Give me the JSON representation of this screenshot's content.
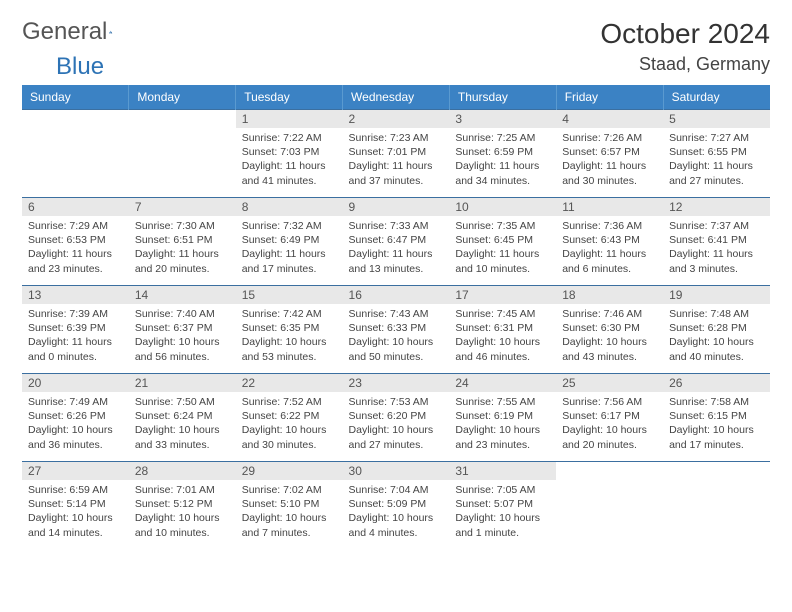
{
  "brand": {
    "part1": "General",
    "part2": "Blue"
  },
  "colors": {
    "header_bg": "#3b82c4",
    "header_text": "#ffffff",
    "daynum_bg": "#e8e8e8",
    "border": "#3b6fa0",
    "brand_blue": "#2d73b5"
  },
  "title": "October 2024",
  "location": "Staad, Germany",
  "weekdays": [
    "Sunday",
    "Monday",
    "Tuesday",
    "Wednesday",
    "Thursday",
    "Friday",
    "Saturday"
  ],
  "weeks": [
    [
      null,
      null,
      {
        "n": "1",
        "sr": "7:22 AM",
        "ss": "7:03 PM",
        "dl": "11 hours and 41 minutes."
      },
      {
        "n": "2",
        "sr": "7:23 AM",
        "ss": "7:01 PM",
        "dl": "11 hours and 37 minutes."
      },
      {
        "n": "3",
        "sr": "7:25 AM",
        "ss": "6:59 PM",
        "dl": "11 hours and 34 minutes."
      },
      {
        "n": "4",
        "sr": "7:26 AM",
        "ss": "6:57 PM",
        "dl": "11 hours and 30 minutes."
      },
      {
        "n": "5",
        "sr": "7:27 AM",
        "ss": "6:55 PM",
        "dl": "11 hours and 27 minutes."
      }
    ],
    [
      {
        "n": "6",
        "sr": "7:29 AM",
        "ss": "6:53 PM",
        "dl": "11 hours and 23 minutes."
      },
      {
        "n": "7",
        "sr": "7:30 AM",
        "ss": "6:51 PM",
        "dl": "11 hours and 20 minutes."
      },
      {
        "n": "8",
        "sr": "7:32 AM",
        "ss": "6:49 PM",
        "dl": "11 hours and 17 minutes."
      },
      {
        "n": "9",
        "sr": "7:33 AM",
        "ss": "6:47 PM",
        "dl": "11 hours and 13 minutes."
      },
      {
        "n": "10",
        "sr": "7:35 AM",
        "ss": "6:45 PM",
        "dl": "11 hours and 10 minutes."
      },
      {
        "n": "11",
        "sr": "7:36 AM",
        "ss": "6:43 PM",
        "dl": "11 hours and 6 minutes."
      },
      {
        "n": "12",
        "sr": "7:37 AM",
        "ss": "6:41 PM",
        "dl": "11 hours and 3 minutes."
      }
    ],
    [
      {
        "n": "13",
        "sr": "7:39 AM",
        "ss": "6:39 PM",
        "dl": "11 hours and 0 minutes."
      },
      {
        "n": "14",
        "sr": "7:40 AM",
        "ss": "6:37 PM",
        "dl": "10 hours and 56 minutes."
      },
      {
        "n": "15",
        "sr": "7:42 AM",
        "ss": "6:35 PM",
        "dl": "10 hours and 53 minutes."
      },
      {
        "n": "16",
        "sr": "7:43 AM",
        "ss": "6:33 PM",
        "dl": "10 hours and 50 minutes."
      },
      {
        "n": "17",
        "sr": "7:45 AM",
        "ss": "6:31 PM",
        "dl": "10 hours and 46 minutes."
      },
      {
        "n": "18",
        "sr": "7:46 AM",
        "ss": "6:30 PM",
        "dl": "10 hours and 43 minutes."
      },
      {
        "n": "19",
        "sr": "7:48 AM",
        "ss": "6:28 PM",
        "dl": "10 hours and 40 minutes."
      }
    ],
    [
      {
        "n": "20",
        "sr": "7:49 AM",
        "ss": "6:26 PM",
        "dl": "10 hours and 36 minutes."
      },
      {
        "n": "21",
        "sr": "7:50 AM",
        "ss": "6:24 PM",
        "dl": "10 hours and 33 minutes."
      },
      {
        "n": "22",
        "sr": "7:52 AM",
        "ss": "6:22 PM",
        "dl": "10 hours and 30 minutes."
      },
      {
        "n": "23",
        "sr": "7:53 AM",
        "ss": "6:20 PM",
        "dl": "10 hours and 27 minutes."
      },
      {
        "n": "24",
        "sr": "7:55 AM",
        "ss": "6:19 PM",
        "dl": "10 hours and 23 minutes."
      },
      {
        "n": "25",
        "sr": "7:56 AM",
        "ss": "6:17 PM",
        "dl": "10 hours and 20 minutes."
      },
      {
        "n": "26",
        "sr": "7:58 AM",
        "ss": "6:15 PM",
        "dl": "10 hours and 17 minutes."
      }
    ],
    [
      {
        "n": "27",
        "sr": "6:59 AM",
        "ss": "5:14 PM",
        "dl": "10 hours and 14 minutes."
      },
      {
        "n": "28",
        "sr": "7:01 AM",
        "ss": "5:12 PM",
        "dl": "10 hours and 10 minutes."
      },
      {
        "n": "29",
        "sr": "7:02 AM",
        "ss": "5:10 PM",
        "dl": "10 hours and 7 minutes."
      },
      {
        "n": "30",
        "sr": "7:04 AM",
        "ss": "5:09 PM",
        "dl": "10 hours and 4 minutes."
      },
      {
        "n": "31",
        "sr": "7:05 AM",
        "ss": "5:07 PM",
        "dl": "10 hours and 1 minute."
      },
      null,
      null
    ]
  ],
  "labels": {
    "sunrise": "Sunrise: ",
    "sunset": "Sunset: ",
    "daylight": "Daylight: "
  }
}
